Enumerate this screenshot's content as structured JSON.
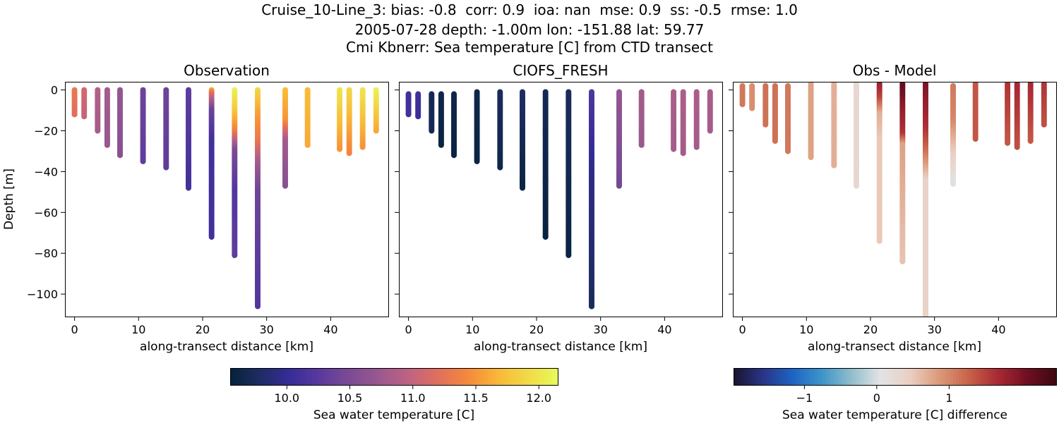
{
  "figure": {
    "title_lines": [
      "Cruise_10-Line_3: bias: -0.8  corr: 0.9  ioa: nan  mse: 0.9  ss: -0.5  rmse: 1.0",
      "2005-07-28 depth: -1.00m lon: -151.88 lat: 59.77",
      "Cmi Kbnerr: Sea temperature [C] from CTD transect"
    ]
  },
  "chart_data": [
    {
      "type": "scatter",
      "title": "Observation",
      "xlabel": "along-transect distance [km]",
      "ylabel": "Depth [m]",
      "xlim": [
        -1.5,
        49
      ],
      "ylim": [
        -111,
        4
      ],
      "xticks": [
        0,
        10,
        20,
        30,
        40
      ],
      "yticks": [
        0,
        -20,
        -40,
        -60,
        -80,
        -100
      ],
      "colormap": "thermal",
      "casts": [
        {
          "x": 0.0,
          "bottom": -12,
          "temps": [
            [
              0,
              11.3
            ],
            [
              -12,
              11.2
            ]
          ]
        },
        {
          "x": 1.5,
          "bottom": -13,
          "temps": [
            [
              0,
              11.1
            ],
            [
              -13,
              11.0
            ]
          ]
        },
        {
          "x": 3.6,
          "bottom": -20,
          "temps": [
            [
              0,
              10.9
            ],
            [
              -20,
              10.8
            ]
          ]
        },
        {
          "x": 5.1,
          "bottom": -27,
          "temps": [
            [
              0,
              10.8
            ],
            [
              -27,
              10.7
            ]
          ]
        },
        {
          "x": 7.1,
          "bottom": -32,
          "temps": [
            [
              0,
              10.7
            ],
            [
              -32,
              10.6
            ]
          ]
        },
        {
          "x": 10.7,
          "bottom": -35,
          "temps": [
            [
              0,
              10.4
            ],
            [
              -35,
              10.3
            ]
          ]
        },
        {
          "x": 14.3,
          "bottom": -38,
          "temps": [
            [
              0,
              10.4
            ],
            [
              -38,
              10.3
            ]
          ]
        },
        {
          "x": 17.8,
          "bottom": -48,
          "temps": [
            [
              0,
              10.3
            ],
            [
              -48,
              10.1
            ]
          ]
        },
        {
          "x": 21.4,
          "bottom": -72,
          "temps": [
            [
              0,
              11.6
            ],
            [
              -2,
              11.2
            ],
            [
              -10,
              10.4
            ],
            [
              -25,
              10.1
            ],
            [
              -72,
              10.1
            ]
          ]
        },
        {
          "x": 25.0,
          "bottom": -81,
          "temps": [
            [
              0,
              12.1
            ],
            [
              -10,
              11.8
            ],
            [
              -20,
              11.4
            ],
            [
              -30,
              10.5
            ],
            [
              -50,
              10.2
            ],
            [
              -81,
              10.3
            ]
          ]
        },
        {
          "x": 28.6,
          "bottom": -106,
          "temps": [
            [
              0,
              11.9
            ],
            [
              -10,
              11.6
            ],
            [
              -25,
              11.3
            ],
            [
              -36,
              10.8
            ],
            [
              -50,
              10.4
            ],
            [
              -106,
              10.2
            ]
          ]
        },
        {
          "x": 32.9,
          "bottom": -47,
          "temps": [
            [
              -1,
              11.7
            ],
            [
              -15,
              11.5
            ],
            [
              -25,
              10.8
            ],
            [
              -47,
              10.6
            ]
          ]
        },
        {
          "x": 36.4,
          "bottom": -27,
          "temps": [
            [
              0,
              11.7
            ],
            [
              -27,
              11.6
            ]
          ]
        },
        {
          "x": 41.4,
          "bottom": -29,
          "temps": [
            [
              0,
              12.0
            ],
            [
              -29,
              11.5
            ]
          ]
        },
        {
          "x": 42.9,
          "bottom": -31,
          "temps": [
            [
              0,
              11.9
            ],
            [
              -31,
              11.4
            ]
          ]
        },
        {
          "x": 45.0,
          "bottom": -28,
          "temps": [
            [
              0,
              12.0
            ],
            [
              -28,
              11.5
            ]
          ]
        },
        {
          "x": 47.1,
          "bottom": -20,
          "temps": [
            [
              0,
              12.1
            ],
            [
              -20,
              11.6
            ]
          ]
        }
      ]
    },
    {
      "type": "scatter",
      "title": "CIOFS_FRESH",
      "xlabel": "along-transect distance [km]",
      "ylabel": "",
      "xlim": [
        -1.5,
        49
      ],
      "ylim": [
        -111,
        4
      ],
      "xticks": [
        0,
        10,
        20,
        30,
        40
      ],
      "yticks": [
        0,
        -20,
        -40,
        -60,
        -80,
        -100
      ],
      "colormap": "thermal",
      "casts": [
        {
          "x": 0.0,
          "top": -2,
          "bottom": -12,
          "temps": [
            [
              0,
              10.1
            ],
            [
              -12,
              10.1
            ]
          ]
        },
        {
          "x": 1.5,
          "top": -2,
          "bottom": -13,
          "temps": [
            [
              0,
              10.1
            ],
            [
              -13,
              10.05
            ]
          ]
        },
        {
          "x": 3.6,
          "top": -2,
          "bottom": -20,
          "temps": [
            [
              0,
              9.7
            ],
            [
              -20,
              9.7
            ]
          ]
        },
        {
          "x": 5.1,
          "top": -2,
          "bottom": -27,
          "temps": [
            [
              0,
              9.65
            ],
            [
              -27,
              9.6
            ]
          ]
        },
        {
          "x": 7.1,
          "top": -2,
          "bottom": -32,
          "temps": [
            [
              0,
              9.65
            ],
            [
              -32,
              9.6
            ]
          ]
        },
        {
          "x": 10.7,
          "top": -1,
          "bottom": -35,
          "temps": [
            [
              0,
              9.65
            ],
            [
              -35,
              9.6
            ]
          ]
        },
        {
          "x": 14.3,
          "top": -1,
          "bottom": -38,
          "temps": [
            [
              0,
              9.75
            ],
            [
              -38,
              9.65
            ]
          ]
        },
        {
          "x": 17.8,
          "top": -1,
          "bottom": -48,
          "temps": [
            [
              0,
              9.8
            ],
            [
              -48,
              9.6
            ]
          ]
        },
        {
          "x": 21.4,
          "top": -1,
          "bottom": -72,
          "temps": [
            [
              0,
              9.7
            ],
            [
              -72,
              9.58
            ]
          ]
        },
        {
          "x": 25.0,
          "top": -1,
          "bottom": -81,
          "temps": [
            [
              0,
              9.75
            ],
            [
              -81,
              9.6
            ]
          ]
        },
        {
          "x": 28.6,
          "top": -1,
          "bottom": -106,
          "temps": [
            [
              0,
              10.2
            ],
            [
              -40,
              9.95
            ],
            [
              -106,
              9.75
            ]
          ]
        },
        {
          "x": 32.9,
          "top": -1,
          "bottom": -47,
          "temps": [
            [
              0,
              10.7
            ],
            [
              -47,
              10.45
            ]
          ]
        },
        {
          "x": 36.4,
          "top": -1,
          "bottom": -27,
          "temps": [
            [
              0,
              10.8
            ],
            [
              -27,
              10.75
            ]
          ]
        },
        {
          "x": 41.4,
          "top": -1,
          "bottom": -29,
          "temps": [
            [
              0,
              10.85
            ],
            [
              -29,
              10.8
            ]
          ]
        },
        {
          "x": 42.9,
          "top": -1,
          "bottom": -31,
          "temps": [
            [
              0,
              10.85
            ],
            [
              -31,
              10.8
            ]
          ]
        },
        {
          "x": 45.0,
          "top": -1,
          "bottom": -28,
          "temps": [
            [
              0,
              10.85
            ],
            [
              -28,
              10.8
            ]
          ]
        },
        {
          "x": 47.1,
          "top": -1,
          "bottom": -20,
          "temps": [
            [
              0,
              10.85
            ],
            [
              -20,
              10.8
            ]
          ]
        }
      ]
    },
    {
      "type": "scatter",
      "title": "Obs - Model",
      "xlabel": "along-transect distance [km]",
      "ylabel": "",
      "xlim": [
        -1.5,
        49
      ],
      "ylim": [
        -111,
        4
      ],
      "xticks": [
        0,
        10,
        20,
        30,
        40
      ],
      "yticks": [
        0,
        -20,
        -40,
        -60,
        -80,
        -100
      ],
      "colormap": "balance",
      "casts": [
        {
          "x": 0.0,
          "top": 2,
          "bottom": -7,
          "diffs": [
            [
              2,
              1.1
            ],
            [
              -7,
              1.1
            ]
          ]
        },
        {
          "x": 1.5,
          "top": 2,
          "bottom": -9,
          "diffs": [
            [
              2,
              0.95
            ],
            [
              -9,
              0.95
            ]
          ]
        },
        {
          "x": 3.6,
          "top": 2,
          "bottom": -17,
          "diffs": [
            [
              2,
              1.15
            ],
            [
              -17,
              1.15
            ]
          ]
        },
        {
          "x": 5.1,
          "top": 2,
          "bottom": -25,
          "diffs": [
            [
              2,
              1.15
            ],
            [
              -25,
              1.15
            ]
          ]
        },
        {
          "x": 7.1,
          "top": 2,
          "bottom": -30,
          "diffs": [
            [
              2,
              1.1
            ],
            [
              -30,
              1.1
            ]
          ]
        },
        {
          "x": 10.7,
          "top": 3,
          "bottom": -33,
          "diffs": [
            [
              3,
              0.8
            ],
            [
              -33,
              0.8
            ]
          ]
        },
        {
          "x": 14.3,
          "top": 3,
          "bottom": -37,
          "diffs": [
            [
              3,
              0.7
            ],
            [
              -37,
              0.7
            ]
          ]
        },
        {
          "x": 17.8,
          "top": 3,
          "bottom": -47,
          "diffs": [
            [
              3,
              0.3
            ],
            [
              -47,
              0.3
            ]
          ]
        },
        {
          "x": 21.4,
          "top": 3,
          "bottom": -74,
          "diffs": [
            [
              3,
              1.8
            ],
            [
              -4,
              1.5
            ],
            [
              -12,
              0.7
            ],
            [
              -25,
              0.5
            ],
            [
              -74,
              0.5
            ]
          ]
        },
        {
          "x": 25.0,
          "top": 3,
          "bottom": -84,
          "diffs": [
            [
              3,
              2.2
            ],
            [
              -12,
              1.8
            ],
            [
              -22,
              1.6
            ],
            [
              -27,
              0.8
            ],
            [
              -84,
              0.55
            ]
          ]
        },
        {
          "x": 28.6,
          "top": 3,
          "bottom": -111,
          "diffs": [
            [
              3,
              2.0
            ],
            [
              -20,
              1.6
            ],
            [
              -30,
              1.2
            ],
            [
              -45,
              0.4
            ],
            [
              -111,
              0.4
            ]
          ]
        },
        {
          "x": 32.9,
          "top": 2,
          "bottom": -46,
          "diffs": [
            [
              2,
              1.1
            ],
            [
              -15,
              1.0
            ],
            [
              -30,
              0.5
            ],
            [
              -46,
              0.1
            ]
          ]
        },
        {
          "x": 36.4,
          "top": 3,
          "bottom": -24,
          "diffs": [
            [
              3,
              1.35
            ],
            [
              -24,
              1.35
            ]
          ]
        },
        {
          "x": 41.4,
          "top": 3,
          "bottom": -26,
          "diffs": [
            [
              3,
              1.6
            ],
            [
              -26,
              1.35
            ]
          ]
        },
        {
          "x": 42.9,
          "top": 3,
          "bottom": -28,
          "diffs": [
            [
              3,
              1.7
            ],
            [
              -28,
              1.4
            ]
          ]
        },
        {
          "x": 45.0,
          "top": 3,
          "bottom": -25,
          "diffs": [
            [
              3,
              1.7
            ],
            [
              -25,
              1.35
            ]
          ]
        },
        {
          "x": 47.1,
          "top": 3,
          "bottom": -17,
          "diffs": [
            [
              3,
              1.6
            ],
            [
              -17,
              1.4
            ]
          ]
        }
      ]
    }
  ],
  "colorbars": [
    {
      "label": "Sea water temperature [C]",
      "colormap": "thermal",
      "vmin": 9.55,
      "vmax": 12.15,
      "ticks": [
        10.0,
        10.5,
        11.0,
        11.5,
        12.0
      ],
      "tick_labels": [
        "10.0",
        "10.5",
        "11.0",
        "11.5",
        "12.0"
      ]
    },
    {
      "label": "Sea water temperature [C] difference",
      "colormap": "balance",
      "vmin": -1.98,
      "vmax": 2.48,
      "ticks": [
        -1,
        0,
        1
      ],
      "tick_labels": [
        "−1",
        "0",
        "1"
      ]
    }
  ],
  "colors": {
    "thermal": [
      "#04233a",
      "#1f2c63",
      "#362c98",
      "#5a3a9e",
      "#7b4b93",
      "#9a588f",
      "#bf6382",
      "#e16f5c",
      "#f58a3b",
      "#f9b838",
      "#f1da47",
      "#e8fa5b"
    ],
    "balance": [
      "#18152e",
      "#2a3487",
      "#1d63c3",
      "#3c94c8",
      "#8fbccb",
      "#e1e4e5",
      "#ebcfc3",
      "#dc9a7a",
      "#c9634a",
      "#a92a34",
      "#6f0f22",
      "#3c0912"
    ]
  }
}
